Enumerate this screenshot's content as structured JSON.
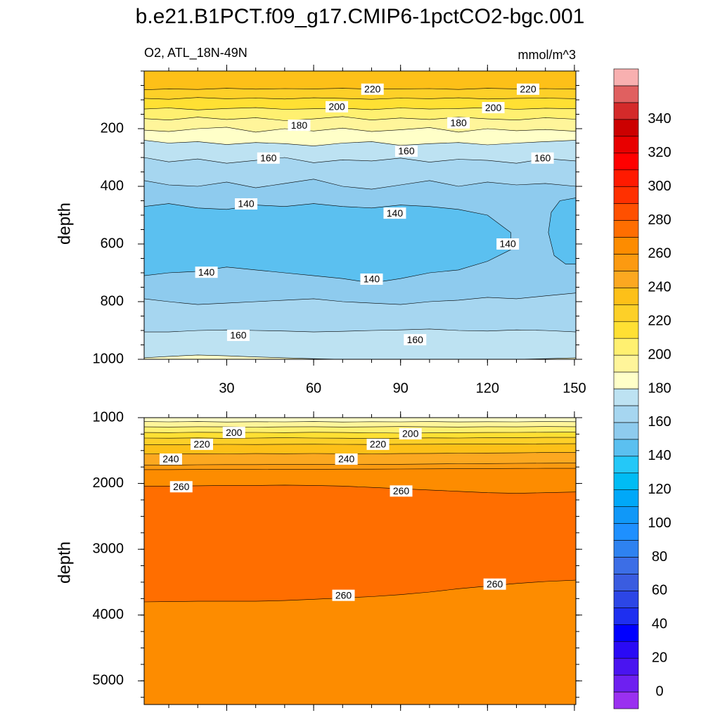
{
  "chart_data": [
    {
      "type": "contour",
      "title": "b.e21.B1PCT.f09_g17.CMIP6-1pctCO2-bgc.001",
      "subtitle_left": "O2, ATL_18N-49N",
      "subtitle_right": "mmol/m^3",
      "ylabel": "depth",
      "xlim": [
        1.5,
        150.5
      ],
      "ylim": [
        0,
        1000
      ],
      "y_reversed": true,
      "xticks": [
        30,
        60,
        90,
        120,
        150
      ],
      "yticks": [
        200,
        400,
        600,
        800,
        1000
      ],
      "show_xtick_labels": true,
      "background": "#fdc018",
      "x": [
        1.5,
        10,
        20,
        30,
        40,
        50,
        60,
        70,
        80,
        90,
        100,
        110,
        120,
        130,
        140,
        150.5
      ],
      "contours": [
        {
          "level": 220,
          "fill": "#fdd028",
          "y": [
            65,
            62,
            64,
            60,
            63,
            61,
            62,
            60,
            63,
            62,
            61,
            64,
            60,
            62,
            61,
            63
          ]
        },
        {
          "level": 210,
          "fill": "#ffe033",
          "y": [
            95,
            98,
            92,
            96,
            94,
            97,
            93,
            95,
            98,
            94,
            96,
            93,
            97,
            95,
            94,
            96
          ]
        },
        {
          "level": 200,
          "fill": "#fff070",
          "y": [
            132,
            128,
            135,
            130,
            127,
            133,
            131,
            129,
            134,
            128,
            132,
            130,
            127,
            133,
            129,
            131
          ]
        },
        {
          "level": 190,
          "fill": "#fff59a",
          "y": [
            165,
            170,
            160,
            168,
            162,
            172,
            166,
            158,
            170,
            163,
            168,
            160,
            166,
            170,
            162,
            167
          ]
        },
        {
          "level": 180,
          "fill": "#ffffc8",
          "y": [
            205,
            210,
            200,
            195,
            212,
            200,
            208,
            198,
            210,
            204,
            196,
            212,
            200,
            207,
            203,
            209
          ]
        },
        {
          "level": 170,
          "fill": "#bde2f2",
          "y": [
            240,
            250,
            245,
            255,
            248,
            252,
            260,
            250,
            245,
            258,
            252,
            248,
            256,
            250,
            245,
            240
          ]
        },
        {
          "level": 160,
          "fill": "#a6d6f0",
          "y": [
            300,
            315,
            305,
            320,
            310,
            300,
            318,
            308,
            312,
            302,
            316,
            306,
            310,
            320,
            304,
            312
          ]
        },
        {
          "level": 150,
          "fill": "#8ecbee",
          "y": [
            380,
            395,
            400,
            385,
            405,
            390,
            375,
            400,
            410,
            395,
            380,
            400,
            385,
            395,
            390,
            400
          ]
        },
        {
          "level": 140,
          "fill": "#5bc0f0",
          "closed": true,
          "x": [
            1.5,
            10,
            20,
            30,
            40,
            50,
            60,
            70,
            80,
            90,
            100,
            110,
            120,
            128,
            128,
            120,
            110,
            100,
            90,
            80,
            70,
            60,
            50,
            40,
            30,
            20,
            10,
            1.5
          ],
          "y": [
            470,
            460,
            475,
            480,
            465,
            470,
            460,
            470,
            475,
            465,
            470,
            480,
            500,
            560,
            620,
            660,
            690,
            700,
            720,
            735,
            720,
            710,
            700,
            690,
            680,
            695,
            700,
            710
          ]
        },
        {
          "level": 140,
          "fill": "#5bc0f0",
          "closed": true,
          "x": [
            150.5,
            145,
            142,
            141,
            143,
            147,
            150.5
          ],
          "y": [
            440,
            450,
            490,
            560,
            640,
            670,
            670
          ]
        },
        {
          "level": 150,
          "fill": "#a6d6f0",
          "y": [
            790,
            800,
            810,
            805,
            800,
            795,
            790,
            800,
            805,
            810,
            800,
            795,
            785,
            790,
            780,
            770
          ]
        },
        {
          "level": 160,
          "fill": "#bde2f2",
          "y": [
            905,
            905,
            900,
            898,
            900,
            902,
            905,
            903,
            900,
            898,
            895,
            900,
            902,
            898,
            900,
            905
          ]
        },
        {
          "level": 170,
          "fill": "#ffffc8",
          "y": [
            995,
            990,
            985,
            988,
            992,
            995,
            998,
            1000,
            1000,
            1000,
            1000,
            1000,
            1000,
            1000,
            998,
            995
          ]
        }
      ],
      "labels": [
        {
          "value": 220,
          "x": 80.3,
          "y": 63
        },
        {
          "value": 220,
          "x": 134,
          "y": 63
        },
        {
          "value": 200,
          "x": 68,
          "y": 124
        },
        {
          "value": 200,
          "x": 122,
          "y": 127
        },
        {
          "value": 180,
          "x": 55,
          "y": 188
        },
        {
          "value": 180,
          "x": 110,
          "y": 180
        },
        {
          "value": 160,
          "x": 44.4,
          "y": 302
        },
        {
          "value": 160,
          "x": 92,
          "y": 278
        },
        {
          "value": 160,
          "x": 139,
          "y": 302
        },
        {
          "value": 140,
          "x": 36.7,
          "y": 461
        },
        {
          "value": 140,
          "x": 88,
          "y": 493
        },
        {
          "value": 140,
          "x": 127,
          "y": 600
        },
        {
          "value": 140,
          "x": 23,
          "y": 698
        },
        {
          "value": 140,
          "x": 80,
          "y": 722
        },
        {
          "value": 160,
          "x": 34,
          "y": 917
        },
        {
          "value": 160,
          "x": 95,
          "y": 932
        }
      ]
    },
    {
      "type": "contour",
      "ylabel": "depth",
      "xlim": [
        1.5,
        150.5
      ],
      "ylim": [
        1000,
        5360
      ],
      "y_reversed": true,
      "xticks": [
        30,
        60,
        90,
        120,
        150
      ],
      "yticks": [
        1000,
        2000,
        3000,
        4000,
        5000
      ],
      "show_xtick_labels": false,
      "background": "#ffffc8",
      "x": [
        1.5,
        10,
        20,
        30,
        40,
        50,
        60,
        70,
        80,
        90,
        100,
        110,
        120,
        130,
        140,
        150.5
      ],
      "contours": [
        {
          "level": 180,
          "fill": "#fff59a",
          "y": [
            1060,
            1064,
            1060,
            1066,
            1062,
            1064,
            1060,
            1066,
            1062,
            1064,
            1060,
            1065,
            1062,
            1064,
            1060,
            1062
          ]
        },
        {
          "level": 190,
          "fill": "#fff070",
          "y": [
            1140,
            1142,
            1138,
            1140,
            1144,
            1140,
            1138,
            1142,
            1140,
            1136,
            1140,
            1142,
            1138,
            1140,
            1136,
            1138
          ]
        },
        {
          "level": 200,
          "fill": "#ffe033",
          "y": [
            1225,
            1228,
            1222,
            1226,
            1224,
            1228,
            1222,
            1226,
            1230,
            1235,
            1232,
            1228,
            1226,
            1224,
            1222,
            1220
          ]
        },
        {
          "level": 210,
          "fill": "#fdd028",
          "y": [
            1310,
            1312,
            1308,
            1314,
            1310,
            1306,
            1310,
            1312,
            1316,
            1312,
            1308,
            1310,
            1306,
            1304,
            1300,
            1300
          ]
        },
        {
          "level": 220,
          "fill": "#fdc018",
          "y": [
            1410,
            1410,
            1408,
            1406,
            1408,
            1405,
            1404,
            1406,
            1408,
            1405,
            1404,
            1402,
            1400,
            1400,
            1398,
            1396
          ]
        },
        {
          "level": 230,
          "fill": "#fca820",
          "y": [
            1550,
            1552,
            1548,
            1550,
            1546,
            1548,
            1545,
            1548,
            1550,
            1546,
            1544,
            1540,
            1538,
            1535,
            1530,
            1528
          ]
        },
        {
          "level": 240,
          "fill": "#fc9a10",
          "y": [
            1720,
            1720,
            1716,
            1714,
            1714,
            1712,
            1710,
            1710,
            1712,
            1708,
            1704,
            1700,
            1698,
            1695,
            1692,
            1690
          ]
        },
        {
          "level": 250,
          "fill": "#fd8c00",
          "y": [
            1790,
            1790,
            1788,
            1786,
            1786,
            1784,
            1784,
            1782,
            1782,
            1780,
            1778,
            1776,
            1774,
            1772,
            1770,
            1770
          ]
        },
        {
          "level": 260,
          "fill": "#ff6e00",
          "y": [
            2040,
            2040,
            2035,
            2030,
            2030,
            2025,
            2030,
            2040,
            2060,
            2080,
            2100,
            2120,
            2140,
            2150,
            2140,
            2130
          ]
        },
        {
          "level": 260,
          "fill": "#fd8c00",
          "y": [
            3800,
            3795,
            3790,
            3790,
            3790,
            3780,
            3760,
            3740,
            3720,
            3690,
            3650,
            3600,
            3560,
            3520,
            3490,
            3470
          ]
        }
      ],
      "labels": [
        {
          "value": 200,
          "x": 32.5,
          "y": 1225
        },
        {
          "value": 200,
          "x": 93.4,
          "y": 1245
        },
        {
          "value": 220,
          "x": 21.4,
          "y": 1405
        },
        {
          "value": 220,
          "x": 82.2,
          "y": 1405
        },
        {
          "value": 240,
          "x": 10.7,
          "y": 1630
        },
        {
          "value": 240,
          "x": 71.3,
          "y": 1630
        },
        {
          "value": 260,
          "x": 14.3,
          "y": 2050
        },
        {
          "value": 260,
          "x": 90.2,
          "y": 2115
        },
        {
          "value": 260,
          "x": 70.3,
          "y": 3700
        },
        {
          "value": 260,
          "x": 122.5,
          "y": 3530
        }
      ]
    }
  ],
  "colorbar": {
    "levels": [
      0,
      20,
      40,
      60,
      80,
      100,
      120,
      140,
      160,
      180,
      200,
      220,
      240,
      260,
      280,
      300,
      320,
      340
    ],
    "colors": [
      "#9a30f0",
      "#6e20f0",
      "#4a14f0",
      "#2a0af5",
      "#0000ff",
      "#1e2ff0",
      "#2c46e6",
      "#3a5ce0",
      "#3c6ee6",
      "#2e82f0",
      "#1e90ff",
      "#1098f8",
      "#00a8f8",
      "#00bcf4",
      "#24c8f8",
      "#5bc0f0",
      "#8ecbee",
      "#a6d6f0",
      "#bde2f2",
      "#ffffc8",
      "#fff59a",
      "#fff070",
      "#ffe033",
      "#fdd028",
      "#fdc018",
      "#fca820",
      "#fc9a10",
      "#fd8c00",
      "#ff6e00",
      "#ff5000",
      "#ff3000",
      "#ff1a00",
      "#ff0000",
      "#e80000",
      "#cc0000",
      "#d42a2a",
      "#e06060",
      "#f8b0b0"
    ]
  }
}
